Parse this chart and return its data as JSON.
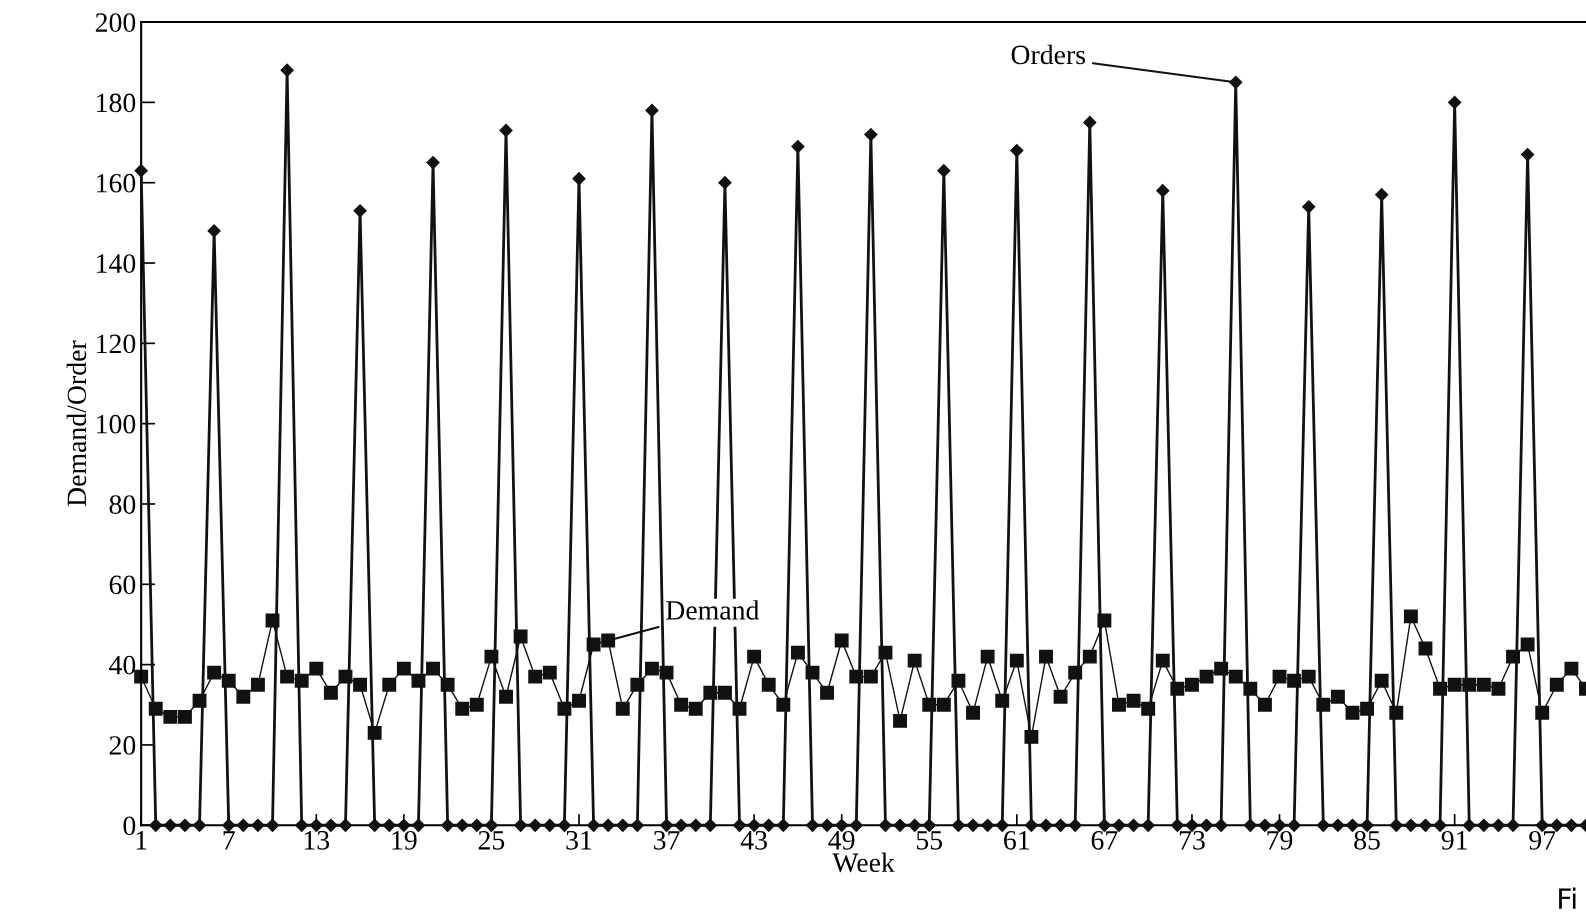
{
  "chart_data": {
    "type": "line",
    "xlabel": "Week",
    "ylabel": "Demand/Order",
    "x": [
      1,
      2,
      3,
      4,
      5,
      6,
      7,
      8,
      9,
      10,
      11,
      12,
      13,
      14,
      15,
      16,
      17,
      18,
      19,
      20,
      21,
      22,
      23,
      24,
      25,
      26,
      27,
      28,
      29,
      30,
      31,
      32,
      33,
      34,
      35,
      36,
      37,
      38,
      39,
      40,
      41,
      42,
      43,
      44,
      45,
      46,
      47,
      48,
      49,
      50,
      51,
      52,
      53,
      54,
      55,
      56,
      57,
      58,
      59,
      60,
      61,
      62,
      63,
      64,
      65,
      66,
      67,
      68,
      69,
      70,
      71,
      72,
      73,
      74,
      75,
      76,
      77,
      78,
      79,
      80,
      81,
      82,
      83,
      84,
      85,
      86,
      87,
      88,
      89,
      90,
      91,
      92,
      93,
      94,
      95,
      96,
      97,
      98,
      99,
      100
    ],
    "series": [
      {
        "color": "#111111",
        "marker": "diamond",
        "values": [
          163,
          0,
          0,
          0,
          0,
          148,
          0,
          0,
          0,
          0,
          188,
          0,
          0,
          0,
          0,
          153,
          0,
          0,
          0,
          0,
          165,
          0,
          0,
          0,
          0,
          173,
          0,
          0,
          0,
          0,
          161,
          0,
          0,
          0,
          0,
          178,
          0,
          0,
          0,
          0,
          160,
          0,
          0,
          0,
          0,
          169,
          0,
          0,
          0,
          0,
          172,
          0,
          0,
          0,
          0,
          163,
          0,
          0,
          0,
          0,
          168,
          0,
          0,
          0,
          0,
          175,
          0,
          0,
          0,
          0,
          158,
          0,
          0,
          0,
          0,
          185,
          0,
          0,
          0,
          0,
          154,
          0,
          0,
          0,
          0,
          157,
          0,
          0,
          0,
          0,
          180,
          0,
          0,
          0,
          0,
          167,
          0,
          0,
          0,
          0
        ]
      },
      {
        "color": "#111111",
        "marker": "square",
        "values": [
          37,
          29,
          27,
          27,
          31,
          38,
          36,
          32,
          35,
          51,
          37,
          36,
          39,
          33,
          37,
          35,
          23,
          35,
          39,
          36,
          39,
          35,
          29,
          30,
          42,
          32,
          47,
          37,
          38,
          29,
          31,
          45,
          46,
          29,
          35,
          39,
          38,
          30,
          29,
          33,
          33,
          29,
          42,
          35,
          30,
          43,
          38,
          33,
          46,
          37,
          37,
          43,
          26,
          41,
          30,
          30,
          36,
          28,
          42,
          31,
          41,
          22,
          42,
          32,
          38,
          42,
          51,
          30,
          31,
          29,
          41,
          34,
          35,
          37,
          39,
          37,
          34,
          30,
          37,
          36,
          37,
          30,
          32,
          28,
          29,
          36,
          28,
          52,
          44,
          34,
          35,
          35,
          35,
          34,
          42,
          45,
          28,
          35,
          39,
          34
        ]
      }
    ],
    "xlim": [
      1,
      100
    ],
    "xticks": [
      1,
      7,
      13,
      19,
      25,
      31,
      37,
      43,
      49,
      55,
      61,
      67,
      73,
      79,
      85,
      91,
      97
    ],
    "ylim": [
      0,
      200
    ],
    "yticks": [
      0,
      20,
      40,
      60,
      80,
      100,
      120,
      140,
      160,
      180,
      200
    ],
    "grid": false,
    "legend": false,
    "annotations": [
      {
        "text": "Orders",
        "x": 76,
        "y": 185
      },
      {
        "text": "Demand",
        "x": 33,
        "y": 46
      },
      "Fi"
    ]
  }
}
